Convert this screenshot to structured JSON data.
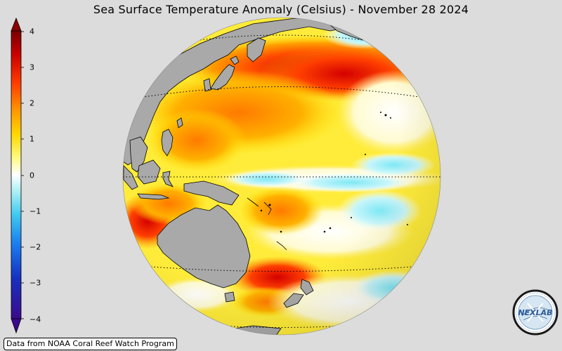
{
  "title": "Sea Surface Temperature Anomaly (Celsius) - November 28 2024",
  "colorbar": {
    "ticks": [
      "4",
      "3",
      "2",
      "1",
      "0",
      "−1",
      "−2",
      "−3",
      "−4"
    ],
    "range": [
      -4,
      4
    ],
    "colors": [
      "#3a0a8a",
      "#1f2bd0",
      "#1c7bf0",
      "#5fd0f5",
      "#ffffff",
      "#fff56b",
      "#ffd60a",
      "#ff8a00",
      "#e02000",
      "#8b0000"
    ]
  },
  "source_text": "Data from NOAA Coral Reef Watch Program",
  "logo_text": "NEXLAB",
  "land_color": "#a9a9a9"
}
